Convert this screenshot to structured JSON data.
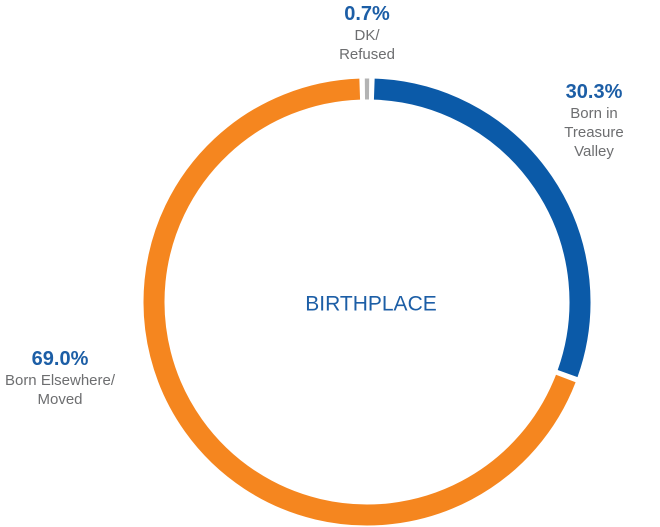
{
  "chart_data": {
    "type": "donut",
    "title": "BIRTHPLACE",
    "categories": [
      "DK/\nRefused",
      "Born in\nTreasure Valley",
      "Born Elsewhere/\nMoved"
    ],
    "values": [
      0.7,
      30.3,
      69.0
    ],
    "value_labels": [
      "0.7%",
      "30.3%",
      "69.0%"
    ],
    "colors": [
      "#b3b3b3",
      "#0b5aa8",
      "#f5861f"
    ]
  }
}
